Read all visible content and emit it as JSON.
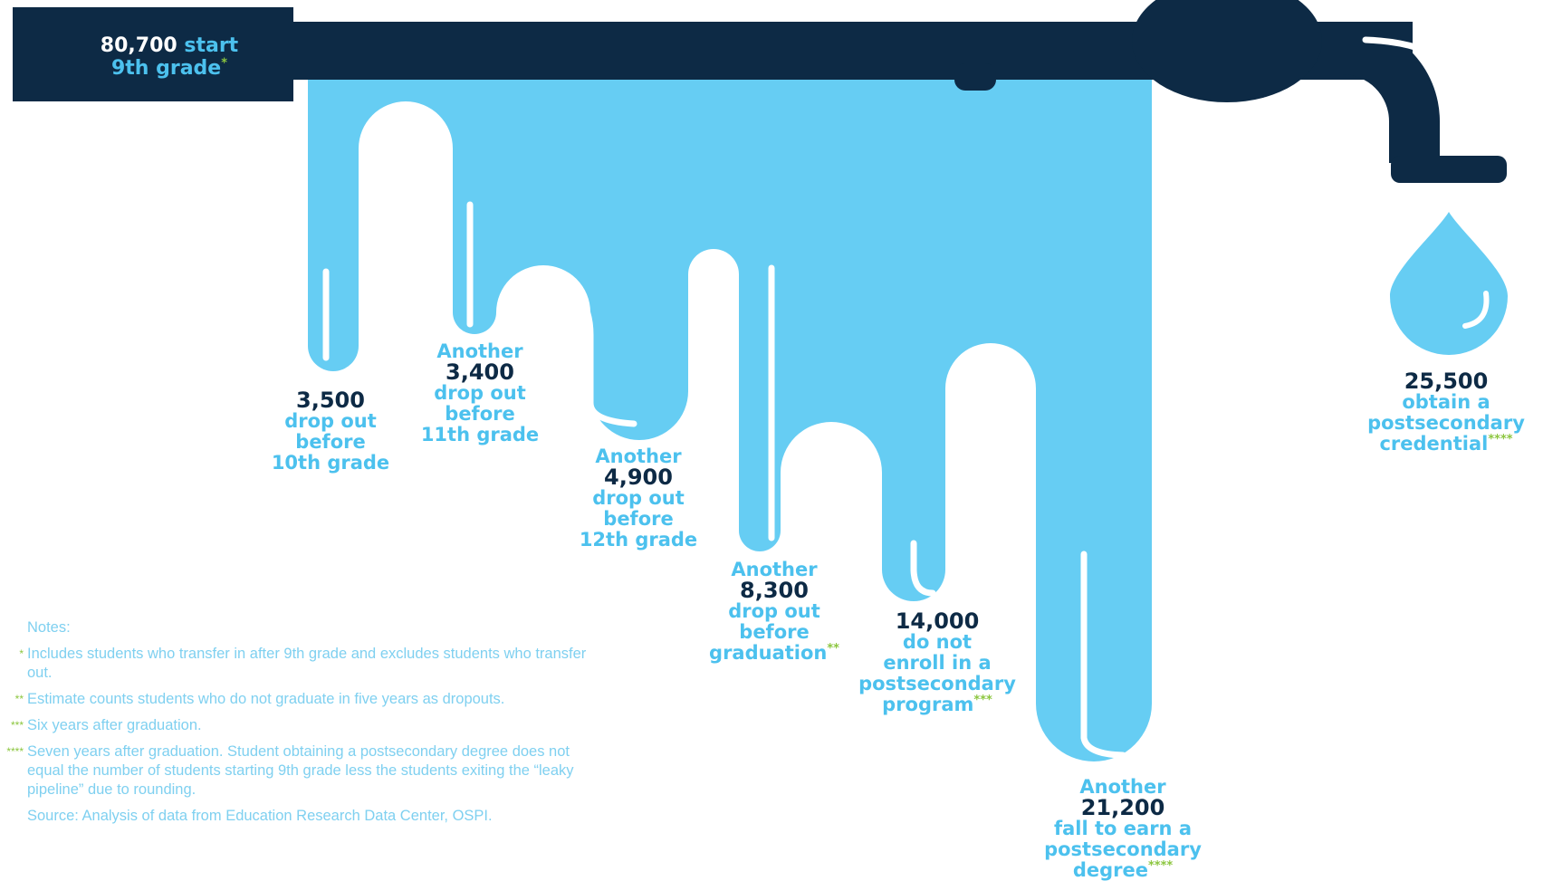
{
  "header": {
    "number": "80,700",
    "text_part1": "start",
    "text_part2": "9th grade",
    "mark": "*"
  },
  "stages": [
    {
      "prefix": "",
      "number": "3,500",
      "lines": [
        "drop out",
        "before",
        "10th grade"
      ],
      "mark": ""
    },
    {
      "prefix": "Another",
      "number": "3,400",
      "lines": [
        "drop out",
        "before",
        "11th grade"
      ],
      "mark": ""
    },
    {
      "prefix": "Another",
      "number": "4,900",
      "lines": [
        "drop out",
        "before",
        "12th grade"
      ],
      "mark": ""
    },
    {
      "prefix": "Another",
      "number": "8,300",
      "lines": [
        "drop out",
        "before",
        "graduation"
      ],
      "mark": "**"
    },
    {
      "prefix": "",
      "number": "14,000",
      "lines": [
        "do not",
        "enroll in a",
        "postsecondary",
        "program"
      ],
      "mark": "***"
    },
    {
      "prefix": "Another",
      "number": "21,200",
      "lines": [
        "fall to earn a",
        "postsecondary",
        "degree"
      ],
      "mark": "****"
    },
    {
      "prefix": "",
      "number": "25,500",
      "lines": [
        "obtain a",
        "postsecondary",
        "credential"
      ],
      "mark": "****"
    }
  ],
  "notes": {
    "title": "Notes:",
    "items": [
      {
        "mark": "*",
        "text": "Includes students who transfer in after 9th grade and excludes students who transfer out."
      },
      {
        "mark": "**",
        "text": "Estimate counts students who do not graduate in five years as dropouts."
      },
      {
        "mark": "***",
        "text": "Six years after graduation."
      },
      {
        "mark": "****",
        "text": "Seven years after graduation. Student obtaining a postsecondary degree does not equal the number of students starting 9th grade less the students exiting the “leaky pipeline” due to rounding."
      }
    ],
    "source": "Source: Analysis of data from Education Research Data Center, OSPI."
  },
  "colors": {
    "navy": "#0d2a45",
    "water": "#66cdf3",
    "label_blue": "#4cc1ee",
    "star_green": "#8cc63f"
  }
}
